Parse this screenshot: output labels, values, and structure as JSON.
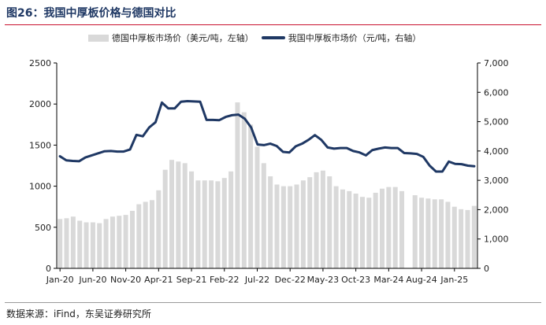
{
  "header": {
    "title": "图26：我国中厚板价格与德国对比"
  },
  "footer": {
    "source": "数据来源：iFind，东吴证券研究所"
  },
  "colors": {
    "bar": "#d9d9d9",
    "line": "#1f3864",
    "accent": "#c8102e"
  },
  "chart_data": {
    "type": "bar+line",
    "x_tick_labels": [
      "Jan-20",
      "Jun-20",
      "Nov-20",
      "Apr-21",
      "Sep-21",
      "Feb-22",
      "Jul-22",
      "Dec-22",
      "May-23",
      "Oct-23",
      "Mar-24",
      "Aug-24",
      "Jan-25"
    ],
    "left_axis": {
      "ylim": [
        0,
        2500
      ],
      "ticks": [
        "0",
        "500",
        "1000",
        "1500",
        "2000",
        "2500"
      ]
    },
    "right_axis": {
      "ylim": [
        0,
        7000
      ],
      "ticks": [
        "0",
        "1,000",
        "2,000",
        "3,000",
        "4,000",
        "5,000",
        "6,000",
        "7,000"
      ]
    },
    "series": [
      {
        "name": "德国中厚板市场价（美元/吨，左轴）",
        "type": "bar",
        "axis": "left",
        "values": [
          600,
          610,
          630,
          580,
          560,
          560,
          550,
          600,
          630,
          640,
          650,
          700,
          780,
          810,
          830,
          950,
          1200,
          1320,
          1300,
          1280,
          1180,
          1070,
          1070,
          1070,
          1060,
          1100,
          1180,
          2020,
          1900,
          1750,
          1480,
          1280,
          1120,
          1020,
          1000,
          1000,
          1020,
          1070,
          1110,
          1170,
          1190,
          1120,
          1000,
          960,
          940,
          910,
          870,
          860,
          920,
          970,
          990,
          990,
          940,
          0,
          890,
          860,
          850,
          840,
          840,
          810,
          750,
          720,
          710,
          760
        ]
      },
      {
        "name": "我国中厚板市场价（元/吨，右轴）",
        "type": "line",
        "axis": "right",
        "values": [
          3820,
          3680,
          3660,
          3650,
          3780,
          3850,
          3920,
          3990,
          4000,
          3980,
          3980,
          4050,
          4550,
          4500,
          4800,
          4980,
          5650,
          5450,
          5450,
          5680,
          5700,
          5690,
          5680,
          5060,
          5060,
          5050,
          5160,
          5220,
          5240,
          5100,
          4800,
          4220,
          4200,
          4250,
          4170,
          3970,
          3950,
          4160,
          4250,
          4380,
          4540,
          4380,
          4120,
          4080,
          4100,
          4100,
          4000,
          3950,
          3850,
          4030,
          4080,
          4120,
          4100,
          4100,
          3930,
          3920,
          3900,
          3800,
          3500,
          3300,
          3300,
          3640,
          3560,
          3550,
          3500,
          3480
        ]
      }
    ]
  }
}
